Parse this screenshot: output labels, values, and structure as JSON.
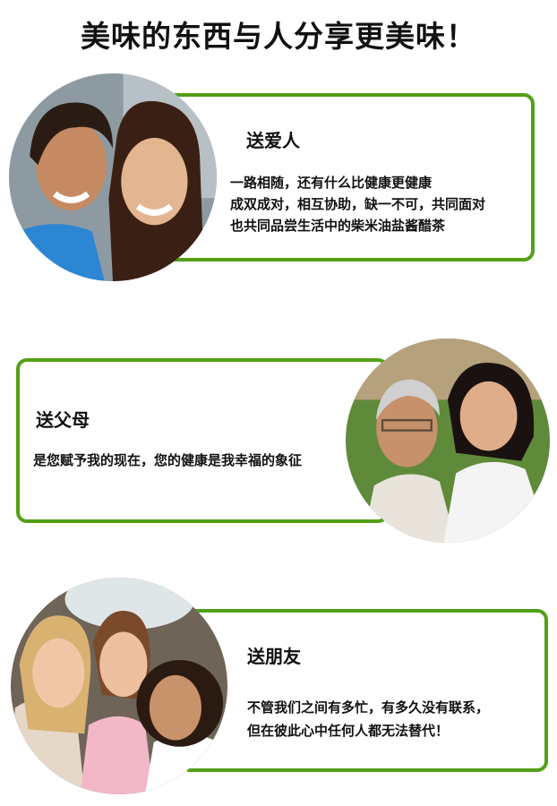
{
  "headline": "美味的东西与人分享更美味！",
  "colors": {
    "accent": "#52a016",
    "text": "#111111",
    "background": "#ffffff"
  },
  "sections": [
    {
      "title": "送爱人",
      "lines": [
        "一路相随，还有什么比健康更健康",
        "成双成对，相互协助，缺一不可，共同面对",
        "也共同品尝生活中的柴米油盐酱醋茶"
      ],
      "photo": "couple-photo"
    },
    {
      "title": "送父母",
      "lines": [
        "是您赋予我的现在，您的健康是我幸福的象征"
      ],
      "photo": "parents-photo"
    },
    {
      "title": "送朋友",
      "lines": [
        "不管我们之间有多忙，有多久没有联系，",
        "但在彼此心中任何人都无法替代！"
      ],
      "photo": "friends-photo"
    }
  ]
}
